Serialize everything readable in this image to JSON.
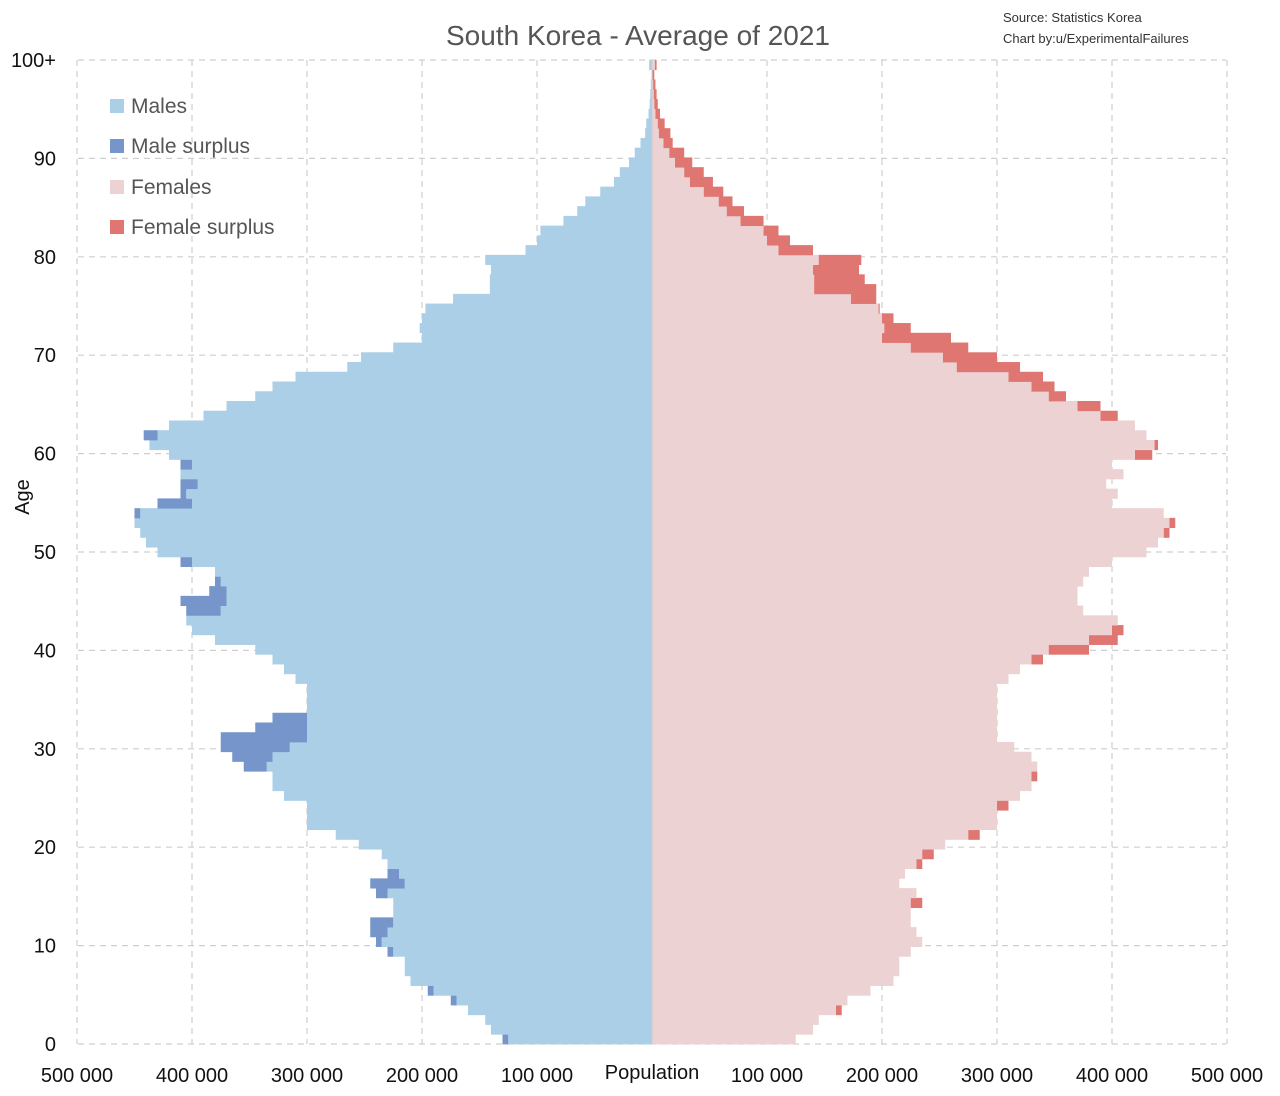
{
  "source_lines": [
    "Source: Statistics Korea",
    "Chart by:u/ExperimentalFailures"
  ],
  "chart_data": {
    "type": "bar",
    "orientation": "horizontal",
    "title": "South Korea  - Average of 2021",
    "xlabel": "Population",
    "ylabel": "Age",
    "x_tick_labels": [
      "500 000",
      "400 000",
      "300 000",
      "200 000",
      "100 000",
      "100 000",
      "200 000",
      "300 000",
      "400 000",
      "500 000"
    ],
    "y_tick_labels": [
      "0",
      "10",
      "20",
      "30",
      "40",
      "50",
      "60",
      "70",
      "80",
      "90",
      "100+"
    ],
    "xlim": [
      -500000,
      500000
    ],
    "ylim": [
      0,
      100
    ],
    "grid": true,
    "legend_position": "top-left",
    "legend": [
      {
        "label": "Males",
        "color": "#abcfe7"
      },
      {
        "label": "Male surplus",
        "color": "#7695ca"
      },
      {
        "label": "Females",
        "color": "#edd2d3"
      },
      {
        "label": "Female surplus",
        "color": "#e07672"
      }
    ],
    "ages": [
      0,
      1,
      2,
      3,
      4,
      5,
      6,
      7,
      8,
      9,
      10,
      11,
      12,
      13,
      14,
      15,
      16,
      17,
      18,
      19,
      20,
      21,
      22,
      23,
      24,
      25,
      26,
      27,
      28,
      29,
      30,
      31,
      32,
      33,
      34,
      35,
      36,
      37,
      38,
      39,
      40,
      41,
      42,
      43,
      44,
      45,
      46,
      47,
      48,
      49,
      50,
      51,
      52,
      53,
      54,
      55,
      56,
      57,
      58,
      59,
      60,
      61,
      62,
      63,
      64,
      65,
      66,
      67,
      68,
      69,
      70,
      71,
      72,
      73,
      74,
      75,
      76,
      77,
      78,
      79,
      80,
      81,
      82,
      83,
      84,
      85,
      86,
      87,
      88,
      89,
      90,
      91,
      92,
      93,
      94,
      95,
      96,
      97,
      98,
      99,
      100
    ],
    "series": [
      {
        "name": "Males",
        "values": [
          130000,
          140000,
          145000,
          160000,
          175000,
          195000,
          210000,
          215000,
          215000,
          230000,
          240000,
          245000,
          245000,
          225000,
          225000,
          240000,
          245000,
          230000,
          230000,
          235000,
          255000,
          275000,
          300000,
          300000,
          300000,
          320000,
          330000,
          330000,
          355000,
          365000,
          375000,
          375000,
          345000,
          330000,
          300000,
          300000,
          300000,
          310000,
          320000,
          330000,
          345000,
          380000,
          400000,
          405000,
          405000,
          410000,
          385000,
          380000,
          380000,
          410000,
          430000,
          440000,
          445000,
          450000,
          450000,
          430000,
          410000,
          410000,
          410000,
          410000,
          420000,
          437000,
          442000,
          420000,
          390000,
          370000,
          345000,
          330000,
          310000,
          265000,
          253000,
          225000,
          200000,
          202000,
          200000,
          197000,
          173000,
          141000,
          141000,
          140000,
          145000,
          110000,
          100000,
          97000,
          77000,
          65000,
          58000,
          45000,
          33000,
          28000,
          20000,
          15000,
          10000,
          6000,
          5000,
          3000,
          2000,
          1500,
          1000,
          500,
          2500
        ]
      },
      {
        "name": "Females",
        "values": [
          125000,
          140000,
          145000,
          165000,
          170000,
          190000,
          210000,
          215000,
          215000,
          225000,
          235000,
          230000,
          225000,
          225000,
          235000,
          230000,
          215000,
          220000,
          235000,
          245000,
          255000,
          285000,
          300000,
          300000,
          310000,
          320000,
          330000,
          335000,
          335000,
          330000,
          315000,
          300000,
          300000,
          300000,
          300000,
          300000,
          300000,
          310000,
          320000,
          340000,
          380000,
          405000,
          410000,
          405000,
          375000,
          370000,
          370000,
          375000,
          380000,
          400000,
          430000,
          440000,
          450000,
          455000,
          445000,
          400000,
          405000,
          395000,
          410000,
          400000,
          435000,
          440000,
          430000,
          420000,
          405000,
          390000,
          360000,
          350000,
          340000,
          320000,
          300000,
          275000,
          260000,
          225000,
          210000,
          198000,
          195000,
          195000,
          185000,
          180000,
          182000,
          140000,
          120000,
          110000,
          97000,
          80000,
          70000,
          62000,
          53000,
          45000,
          35000,
          28000,
          18000,
          16000,
          11000,
          7000,
          5000,
          4000,
          3000,
          2000,
          4000
        ]
      }
    ]
  }
}
